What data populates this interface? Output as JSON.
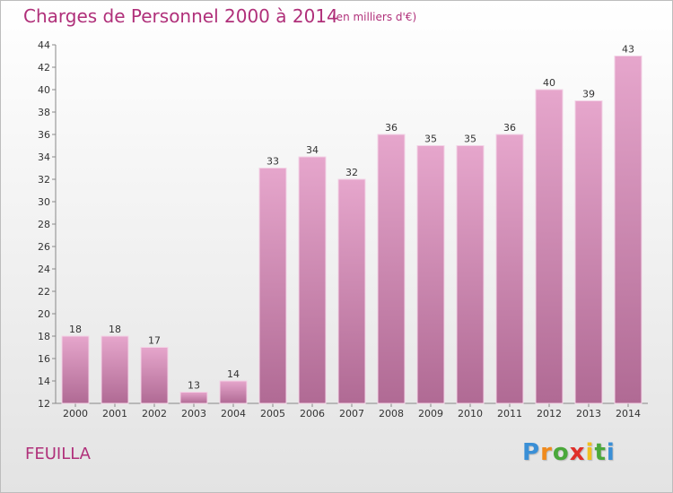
{
  "title": "Charges de Personnel 2000 à 2014",
  "subtitle": "(en milliers d'€)",
  "commune": "FEUILLA",
  "logo": {
    "letters": [
      "P",
      "r",
      "o",
      "x",
      "i",
      "t",
      "i"
    ],
    "colors": [
      "#3a8fd6",
      "#f08a1c",
      "#4aa83a",
      "#e0302a",
      "#f0c020",
      "#4aa83a",
      "#3a8fd6"
    ]
  },
  "colors": {
    "accent": "#b0307a",
    "bar_top": "#e6a6cc",
    "bar_bottom": "#b06a94"
  },
  "chart_data": {
    "type": "bar",
    "title": "Charges de Personnel 2000 à 2014",
    "subtitle": "(en milliers d'€)",
    "categories": [
      "2000",
      "2001",
      "2002",
      "2003",
      "2004",
      "2005",
      "2006",
      "2007",
      "2008",
      "2009",
      "2010",
      "2011",
      "2012",
      "2013",
      "2014"
    ],
    "values": [
      18,
      18,
      17,
      13,
      14,
      33,
      34,
      32,
      36,
      35,
      35,
      36,
      40,
      39,
      43
    ],
    "ylim": [
      12,
      44
    ],
    "yticks": [
      12,
      14,
      16,
      18,
      20,
      22,
      24,
      26,
      28,
      30,
      32,
      34,
      36,
      38,
      40,
      42,
      44
    ],
    "grid": false
  }
}
